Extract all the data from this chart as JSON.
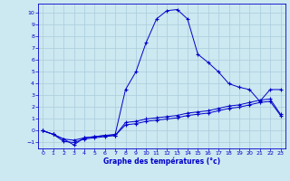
{
  "xlabel": "Graphe des températures (°c)",
  "background_color": "#cce8f0",
  "grid_color": "#aaccdd",
  "line_color": "#0000cc",
  "xlim": [
    -0.5,
    23.5
  ],
  "ylim": [
    -1.5,
    10.8
  ],
  "yticks": [
    -1,
    0,
    1,
    2,
    3,
    4,
    5,
    6,
    7,
    8,
    9,
    10
  ],
  "xticks": [
    0,
    1,
    2,
    3,
    4,
    5,
    6,
    7,
    8,
    9,
    10,
    11,
    12,
    13,
    14,
    15,
    16,
    17,
    18,
    19,
    20,
    21,
    22,
    23
  ],
  "series_main": {
    "x": [
      0,
      1,
      2,
      3,
      4,
      5,
      6,
      7,
      8,
      9,
      10,
      11,
      12,
      13,
      14,
      15,
      16,
      17,
      18,
      19,
      20,
      21,
      22,
      23
    ],
    "y": [
      0.0,
      -0.3,
      -0.7,
      -1.2,
      -0.6,
      -0.5,
      -0.4,
      -0.3,
      3.5,
      5.0,
      7.5,
      9.5,
      10.2,
      10.3,
      9.5,
      6.5,
      5.8,
      5.0,
      4.0,
      3.7,
      3.5,
      2.5,
      3.5,
      3.5
    ]
  },
  "series_mid": {
    "x": [
      0,
      1,
      2,
      3,
      4,
      5,
      6,
      7,
      8,
      9,
      10,
      11,
      12,
      13,
      14,
      15,
      16,
      17,
      18,
      19,
      20,
      21,
      22,
      23
    ],
    "y": [
      0.0,
      -0.3,
      -0.9,
      -1.0,
      -0.7,
      -0.6,
      -0.5,
      -0.4,
      0.7,
      0.8,
      1.0,
      1.1,
      1.2,
      1.3,
      1.5,
      1.6,
      1.7,
      1.9,
      2.1,
      2.2,
      2.4,
      2.6,
      2.7,
      1.4
    ]
  },
  "series_bot": {
    "x": [
      0,
      1,
      2,
      3,
      4,
      5,
      6,
      7,
      8,
      9,
      10,
      11,
      12,
      13,
      14,
      15,
      16,
      17,
      18,
      19,
      20,
      21,
      22,
      23
    ],
    "y": [
      0.0,
      -0.3,
      -0.7,
      -0.8,
      -0.6,
      -0.5,
      -0.4,
      -0.4,
      0.5,
      0.6,
      0.8,
      0.9,
      1.0,
      1.1,
      1.3,
      1.4,
      1.5,
      1.7,
      1.9,
      2.0,
      2.2,
      2.4,
      2.5,
      1.3
    ]
  }
}
